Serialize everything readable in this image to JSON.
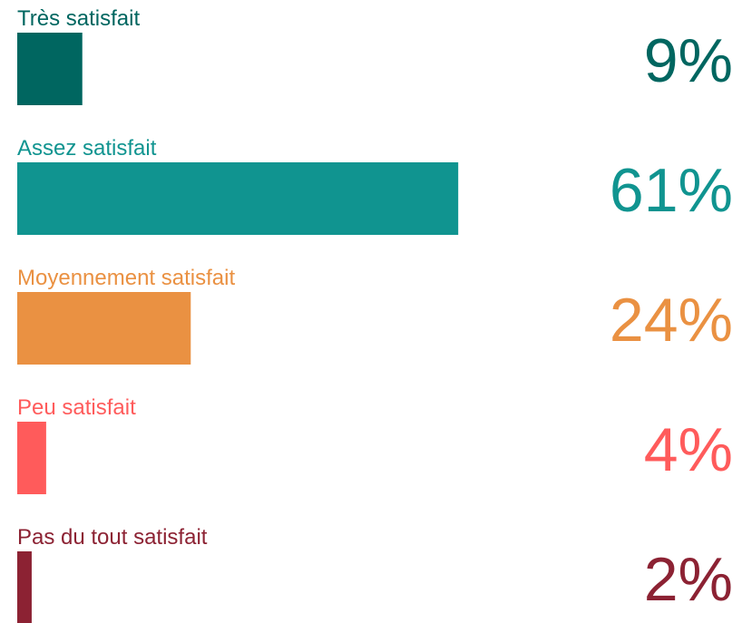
{
  "chart_data": {
    "type": "bar",
    "orientation": "horizontal",
    "categories": [
      "Très satisfait",
      "Assez satisfait",
      "Moyennement satisfait",
      "Peu satisfait",
      "Pas du tout satisfait"
    ],
    "values": [
      9,
      61,
      24,
      4,
      2
    ],
    "value_labels": [
      "9%",
      "61%",
      "24%",
      "4%",
      "2%"
    ],
    "colors": [
      "#006660",
      "#109490",
      "#ea9142",
      "#ff5b5b",
      "#8c2233"
    ]
  }
}
